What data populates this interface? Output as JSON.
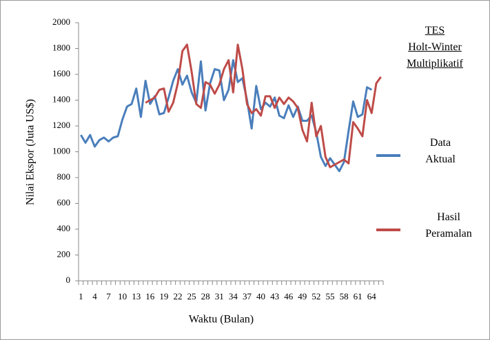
{
  "chart_data": {
    "type": "line",
    "title": [
      "TES",
      "Holt-Winter",
      "Multiplikatif"
    ],
    "x_label": "Waktu (Bulan)",
    "y_label": "Nilai Ekspor (Juta US$)",
    "categories": [
      1,
      null,
      null,
      4,
      null,
      null,
      7,
      null,
      null,
      10,
      null,
      null,
      13,
      null,
      null,
      16,
      null,
      null,
      19,
      null,
      null,
      22,
      null,
      null,
      25,
      null,
      null,
      28,
      null,
      null,
      31,
      null,
      null,
      34,
      null,
      null,
      37,
      null,
      null,
      40,
      null,
      null,
      43,
      null,
      null,
      46,
      null,
      null,
      49,
      null,
      null,
      52,
      null,
      null,
      55,
      null,
      null,
      58,
      null,
      null,
      61,
      null,
      null,
      64,
      null,
      null
    ],
    "series": [
      {
        "name": "Data Aktual",
        "color": "#4a7ebb",
        "values": [
          1130,
          1070,
          1130,
          1040,
          1090,
          1110,
          1080,
          1110,
          1120,
          1250,
          1350,
          1370,
          1490,
          1270,
          1550,
          1370,
          1430,
          1290,
          1300,
          1420,
          1550,
          1640,
          1520,
          1590,
          1460,
          1380,
          1700,
          1320,
          1530,
          1640,
          1630,
          1400,
          1480,
          1710,
          1540,
          1570,
          1400,
          1180,
          1510,
          1330,
          1380,
          1350,
          1420,
          1280,
          1260,
          1360,
          1270,
          1350,
          1240,
          1240,
          1280,
          1150,
          960,
          890,
          950,
          900,
          850,
          920,
          1160,
          1390,
          1270,
          1290,
          1500,
          1480,
          null,
          null
        ]
      },
      {
        "name": "Hasil Peramalan",
        "color": "#be4b48",
        "values": [
          null,
          null,
          null,
          null,
          null,
          null,
          null,
          null,
          null,
          null,
          null,
          null,
          null,
          null,
          1380,
          1400,
          1420,
          1480,
          1490,
          1310,
          1380,
          1530,
          1780,
          1830,
          1620,
          1370,
          1340,
          1540,
          1520,
          1450,
          1520,
          1640,
          1710,
          1460,
          1830,
          1640,
          1370,
          1300,
          1330,
          1280,
          1430,
          1430,
          1340,
          1420,
          1370,
          1420,
          1390,
          1340,
          1170,
          1080,
          1380,
          1120,
          1200,
          960,
          880,
          900,
          920,
          940,
          910,
          1230,
          1180,
          1120,
          1400,
          1300,
          1530,
          1580
        ]
      }
    ],
    "ylim": [
      0,
      2000
    ],
    "yticks": [
      0,
      200,
      400,
      600,
      800,
      1000,
      1200,
      1400,
      1600,
      1800,
      2000
    ],
    "grid": false
  }
}
